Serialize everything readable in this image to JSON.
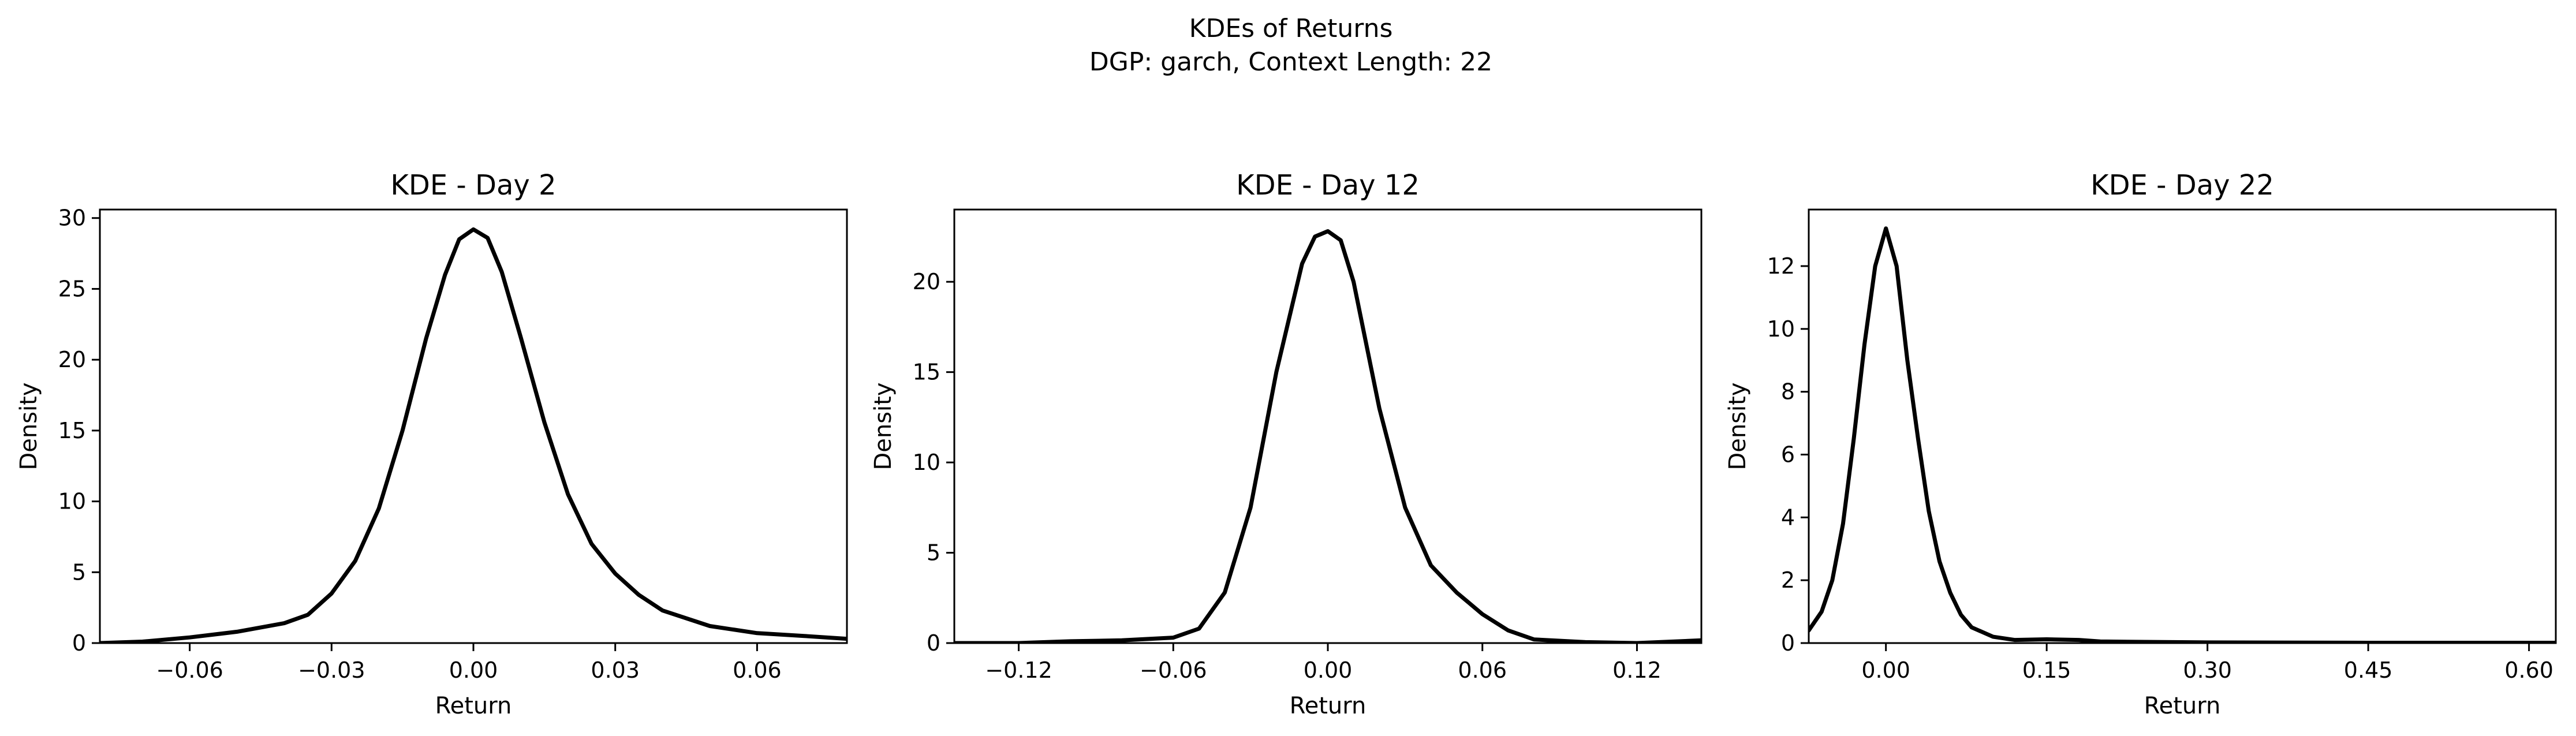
{
  "figure": {
    "title_line1": "KDEs of Returns",
    "title_line2": "DGP: garch, Context Length: 22"
  },
  "chart_data": [
    {
      "type": "line",
      "title": "KDE - Day 2",
      "xlabel": "Return",
      "ylabel": "Density",
      "xlim": [
        -0.079,
        0.079
      ],
      "ylim": [
        0,
        30.6
      ],
      "xticks": [
        -0.06,
        -0.03,
        0.0,
        0.03,
        0.06
      ],
      "xtick_labels": [
        "−0.06",
        "−0.03",
        "0.00",
        "0.03",
        "0.06"
      ],
      "yticks": [
        0,
        5,
        10,
        15,
        20,
        25,
        30
      ],
      "ytick_labels": [
        "0",
        "5",
        "10",
        "15",
        "20",
        "25",
        "30"
      ],
      "grid": false,
      "series": [
        {
          "color": "#000000",
          "x": [
            -0.079,
            -0.07,
            -0.06,
            -0.05,
            -0.04,
            -0.035,
            -0.03,
            -0.025,
            -0.02,
            -0.015,
            -0.01,
            -0.006,
            -0.003,
            0.0,
            0.003,
            0.006,
            0.01,
            0.015,
            0.02,
            0.025,
            0.03,
            0.035,
            0.04,
            0.05,
            0.06,
            0.07,
            0.079
          ],
          "y": [
            0.0,
            0.1,
            0.4,
            0.8,
            1.4,
            2.0,
            3.5,
            5.8,
            9.5,
            15.0,
            21.5,
            26.0,
            28.5,
            29.2,
            28.6,
            26.2,
            21.6,
            15.6,
            10.5,
            7.0,
            4.9,
            3.4,
            2.3,
            1.2,
            0.7,
            0.5,
            0.3
          ]
        }
      ]
    },
    {
      "type": "line",
      "title": "KDE - Day 12",
      "xlabel": "Return",
      "ylabel": "Density",
      "xlim": [
        -0.145,
        0.145
      ],
      "ylim": [
        0,
        24.0
      ],
      "xticks": [
        -0.12,
        -0.06,
        0.0,
        0.06,
        0.12
      ],
      "xtick_labels": [
        "−0.12",
        "−0.06",
        "0.00",
        "0.06",
        "0.12"
      ],
      "yticks": [
        0,
        5,
        10,
        15,
        20
      ],
      "ytick_labels": [
        "0",
        "5",
        "10",
        "15",
        "20"
      ],
      "grid": false,
      "series": [
        {
          "color": "#000000",
          "x": [
            -0.145,
            -0.12,
            -0.1,
            -0.08,
            -0.06,
            -0.05,
            -0.04,
            -0.03,
            -0.02,
            -0.01,
            -0.005,
            0.0,
            0.005,
            0.01,
            0.02,
            0.03,
            0.04,
            0.05,
            0.06,
            0.07,
            0.08,
            0.1,
            0.12,
            0.145
          ],
          "y": [
            0.0,
            0.0,
            0.1,
            0.15,
            0.3,
            0.8,
            2.8,
            7.5,
            15.0,
            21.0,
            22.5,
            22.8,
            22.3,
            20.0,
            13.0,
            7.5,
            4.3,
            2.8,
            1.6,
            0.7,
            0.2,
            0.05,
            0.0,
            0.15
          ]
        }
      ]
    },
    {
      "type": "line",
      "title": "KDE - Day 22",
      "xlabel": "Return",
      "ylabel": "Density",
      "xlim": [
        -0.072,
        0.625
      ],
      "ylim": [
        0,
        13.8
      ],
      "xticks": [
        0.0,
        0.15,
        0.3,
        0.45,
        0.6
      ],
      "xtick_labels": [
        "0.00",
        "0.15",
        "0.30",
        "0.45",
        "0.60"
      ],
      "yticks": [
        0,
        2,
        4,
        6,
        8,
        10,
        12
      ],
      "ytick_labels": [
        "0",
        "2",
        "4",
        "6",
        "8",
        "10",
        "12"
      ],
      "grid": false,
      "series": [
        {
          "color": "#000000",
          "x": [
            -0.072,
            -0.06,
            -0.05,
            -0.04,
            -0.03,
            -0.02,
            -0.01,
            0.0,
            0.01,
            0.02,
            0.03,
            0.04,
            0.05,
            0.06,
            0.07,
            0.08,
            0.1,
            0.12,
            0.15,
            0.18,
            0.2,
            0.3,
            0.45,
            0.625
          ],
          "y": [
            0.4,
            1.0,
            2.0,
            3.8,
            6.5,
            9.5,
            12.0,
            13.2,
            12.0,
            9.0,
            6.5,
            4.2,
            2.6,
            1.6,
            0.9,
            0.5,
            0.2,
            0.1,
            0.12,
            0.1,
            0.05,
            0.02,
            0.01,
            0.01
          ]
        }
      ]
    }
  ]
}
